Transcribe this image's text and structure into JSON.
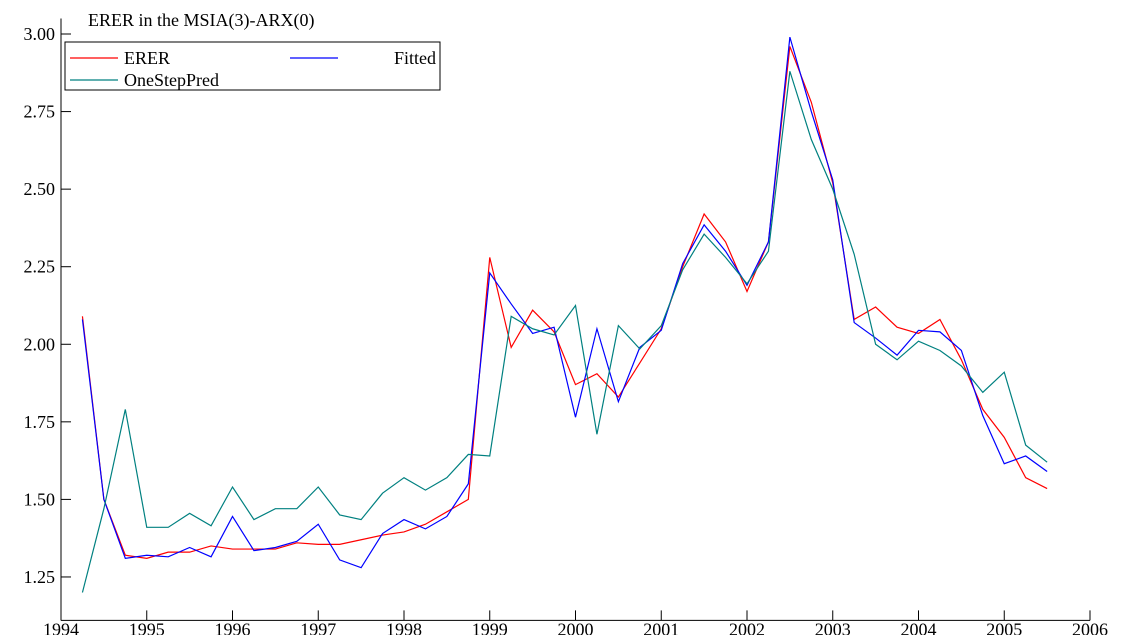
{
  "chart_data": {
    "type": "line",
    "title": "ERER in the MSIA(3)-ARX(0)",
    "x": [
      1994.25,
      1994.5,
      1994.75,
      1995,
      1995.25,
      1995.5,
      1995.75,
      1996,
      1996.25,
      1996.5,
      1996.75,
      1997,
      1997.25,
      1997.5,
      1997.75,
      1998,
      1998.25,
      1998.5,
      1998.75,
      1999,
      1999.25,
      1999.5,
      1999.75,
      2000,
      2000.25,
      2000.5,
      2000.75,
      2001,
      2001.25,
      2001.5,
      2001.75,
      2002,
      2002.25,
      2002.5,
      2002.75,
      2003,
      2003.25,
      2003.5,
      2003.75,
      2004,
      2004.25,
      2004.5,
      2004.75,
      2005,
      2005.25,
      2005.5
    ],
    "series": [
      {
        "name": "ERER",
        "color": "#ff0000",
        "values": [
          2.09,
          1.5,
          1.32,
          1.31,
          1.33,
          1.33,
          1.35,
          1.34,
          1.34,
          1.34,
          1.36,
          1.355,
          1.355,
          1.37,
          1.385,
          1.395,
          1.42,
          1.46,
          1.5,
          2.28,
          1.99,
          2.11,
          2.04,
          1.87,
          1.905,
          1.83,
          1.94,
          2.05,
          2.25,
          2.42,
          2.33,
          2.17,
          2.33,
          2.96,
          2.78,
          2.52,
          2.08,
          2.12,
          2.055,
          2.035,
          2.08,
          1.95,
          1.79,
          1.7,
          1.57,
          1.535
        ]
      },
      {
        "name": "Fitted",
        "color": "#0000ff",
        "values": [
          2.08,
          1.5,
          1.31,
          1.32,
          1.315,
          1.345,
          1.315,
          1.445,
          1.335,
          1.345,
          1.365,
          1.42,
          1.305,
          1.28,
          1.39,
          1.435,
          1.405,
          1.445,
          1.55,
          2.23,
          2.13,
          2.035,
          2.055,
          1.765,
          2.05,
          1.815,
          1.99,
          2.045,
          2.26,
          2.385,
          2.3,
          2.19,
          2.33,
          2.99,
          2.75,
          2.53,
          2.07,
          2.02,
          1.965,
          2.045,
          2.04,
          1.98,
          1.77,
          1.615,
          1.64,
          1.59
        ]
      },
      {
        "name": "OneStepPred",
        "color": "#008080",
        "values": [
          1.2,
          1.47,
          1.79,
          1.41,
          1.41,
          1.455,
          1.415,
          1.54,
          1.435,
          1.47,
          1.47,
          1.54,
          1.45,
          1.435,
          1.52,
          1.57,
          1.53,
          1.57,
          1.645,
          1.64,
          2.09,
          2.05,
          2.03,
          2.125,
          1.71,
          2.06,
          1.985,
          2.06,
          2.24,
          2.355,
          2.28,
          2.195,
          2.3,
          2.88,
          2.66,
          2.5,
          2.29,
          2.0,
          1.95,
          2.01,
          1.98,
          1.93,
          1.845,
          1.91,
          1.675,
          1.62
        ]
      }
    ],
    "xlim": [
      1994,
      2006
    ],
    "xticks": [
      1994,
      1995,
      1996,
      1997,
      1998,
      1999,
      2000,
      2001,
      2002,
      2003,
      2004,
      2005,
      2006
    ],
    "ylim": [
      1.11,
      3.05
    ],
    "yticks": [
      1.25,
      {
        "value": 1.5,
        "label": "1.50"
      },
      {
        "value": 1.75,
        "label": "1.75"
      },
      {
        "value": 2,
        "label": "2.00"
      },
      2.25,
      {
        "value": 2.5,
        "label": "2.50"
      },
      2.75,
      {
        "value": 3,
        "label": "3.00"
      }
    ],
    "legend": "upper left"
  }
}
